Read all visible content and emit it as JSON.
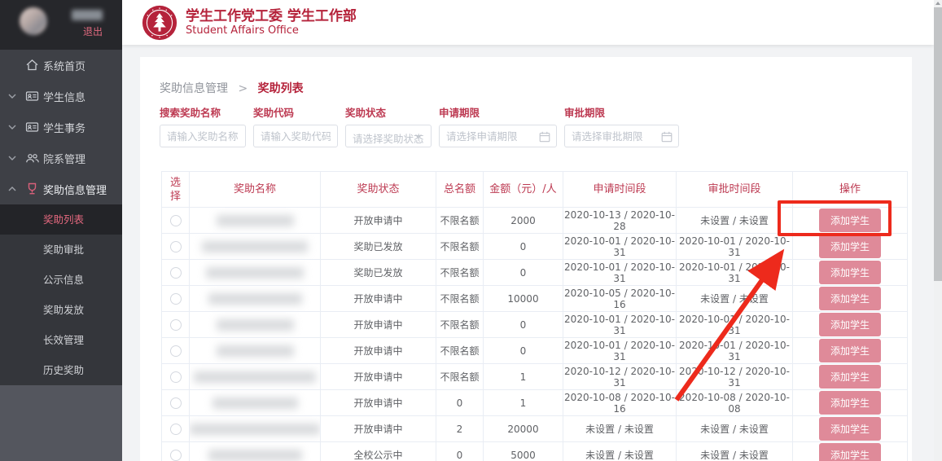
{
  "topbar": {
    "logout": "退出",
    "title_cn": "学生工作党工委 学生工作部",
    "title_en": "Student Affairs Office"
  },
  "sidebar": {
    "items": [
      {
        "key": "home",
        "label": "系统首页",
        "icon": "home-icon",
        "chevron": null,
        "active": false
      },
      {
        "key": "student-info",
        "label": "学生信息",
        "icon": "idcard-icon",
        "chevron": "down",
        "active": false
      },
      {
        "key": "student-affairs",
        "label": "学生事务",
        "icon": "idcard-icon",
        "chevron": "down",
        "active": false
      },
      {
        "key": "dept-mgmt",
        "label": "院系管理",
        "icon": "group-icon",
        "chevron": "down",
        "active": false
      },
      {
        "key": "award-mgmt",
        "label": "奖助信息管理",
        "icon": "award-icon",
        "chevron": "up",
        "active": true
      }
    ],
    "submenu": [
      {
        "key": "award-list",
        "label": "奖助列表",
        "active": true
      },
      {
        "key": "award-approval",
        "label": "奖助审批",
        "active": false
      },
      {
        "key": "public-info",
        "label": "公示信息",
        "active": false
      },
      {
        "key": "award-grant",
        "label": "奖助发放",
        "active": false
      },
      {
        "key": "long-term-mgmt",
        "label": "长效管理",
        "active": false
      },
      {
        "key": "history-award",
        "label": "历史奖助",
        "active": false
      }
    ]
  },
  "breadcrumb": {
    "parent": "奖助信息管理",
    "separator": ">",
    "current": "奖助列表"
  },
  "filters": [
    {
      "key": "award-name-search",
      "label": "搜索奖助名称",
      "placeholder": "请输入奖助名称",
      "type": "text"
    },
    {
      "key": "award-code",
      "label": "奖助代码",
      "placeholder": "请输入奖助代码",
      "type": "text"
    },
    {
      "key": "award-status",
      "label": "奖助状态",
      "placeholder": "请选择奖助状态",
      "type": "select"
    },
    {
      "key": "apply-period",
      "label": "申请期限",
      "placeholder": "请选择申请期限",
      "type": "date"
    },
    {
      "key": "approve-period",
      "label": "审批期限",
      "placeholder": "请选择审批期限",
      "type": "date"
    }
  ],
  "table": {
    "headers": [
      "选择",
      "奖助名称",
      "奖助状态",
      "总名额",
      "金额（元）/人",
      "申请时间段",
      "审批时间段",
      "操作"
    ],
    "action_label": "添加学生",
    "rows": [
      {
        "status": "开放申请中",
        "quota": "不限名额",
        "amount": "2000",
        "apply": "2020-10-13 / 2020-10-28",
        "approve": "未设置 / 未设置",
        "name_w": 95,
        "highlighted": true
      },
      {
        "status": "奖助已发放",
        "quota": "不限名额",
        "amount": "0",
        "apply": "2020-10-01 / 2020-10-31",
        "approve": "2020-10-01 / 2020-10-31",
        "name_w": 130,
        "highlighted": false
      },
      {
        "status": "奖助已发放",
        "quota": "不限名额",
        "amount": "0",
        "apply": "2020-10-01 / 2020-10-31",
        "approve": "2020-10-01 / 2020-10-31",
        "name_w": 120,
        "highlighted": false
      },
      {
        "status": "开放申请中",
        "quota": "不限名额",
        "amount": "10000",
        "apply": "2020-10-05 / 2020-10-16",
        "approve": "未设置 / 未设置",
        "name_w": 115,
        "highlighted": false
      },
      {
        "status": "开放申请中",
        "quota": "不限名额",
        "amount": "0",
        "apply": "2020-10-01 / 2020-10-31",
        "approve": "2020-10-01 / 2020-10-31",
        "name_w": 95,
        "highlighted": false
      },
      {
        "status": "开放申请中",
        "quota": "不限名额",
        "amount": "0",
        "apply": "2020-10-01 / 2020-10-31",
        "approve": "2020-10-01 / 2020-10-31",
        "name_w": 95,
        "highlighted": false
      },
      {
        "status": "开放申请中",
        "quota": "不限名额",
        "amount": "1",
        "apply": "2020-10-12 / 2020-10-31",
        "approve": "2020-10-12 / 2020-10-31",
        "name_w": 150,
        "highlighted": false
      },
      {
        "status": "开放申请中",
        "quota": "0",
        "amount": "1",
        "apply": "2020-10-08 / 2020-10-16",
        "approve": "2020-10-08 / 2020-10-08",
        "name_w": 105,
        "highlighted": false
      },
      {
        "status": "开放申请中",
        "quota": "2",
        "amount": "20000",
        "apply": "未设置 / 未设置",
        "approve": "未设置 / 未设置",
        "name_w": 160,
        "highlighted": false
      },
      {
        "status": "全校公示中",
        "quota": "0",
        "amount": "5000",
        "apply": "未设置 / 未设置",
        "approve": "未设置 / 未设置",
        "name_w": 115,
        "highlighted": false
      }
    ]
  },
  "annotations": {
    "highlight_row_index": 0,
    "arrow_points_to": "add-student-button-row-1",
    "color": "#ed2a1c"
  },
  "colors": {
    "brand_crimson": "#b5233b",
    "table_header_text": "#bd3a52",
    "button_pink": "#df8a99",
    "annotation_red": "#ed2a1c",
    "sidebar_dark": "#26272b",
    "sidebar_menu": "#3e4046",
    "sidebar_submenu": "#34363b",
    "sidebar_active_item": "#232428",
    "active_item_text": "#e5697f"
  }
}
